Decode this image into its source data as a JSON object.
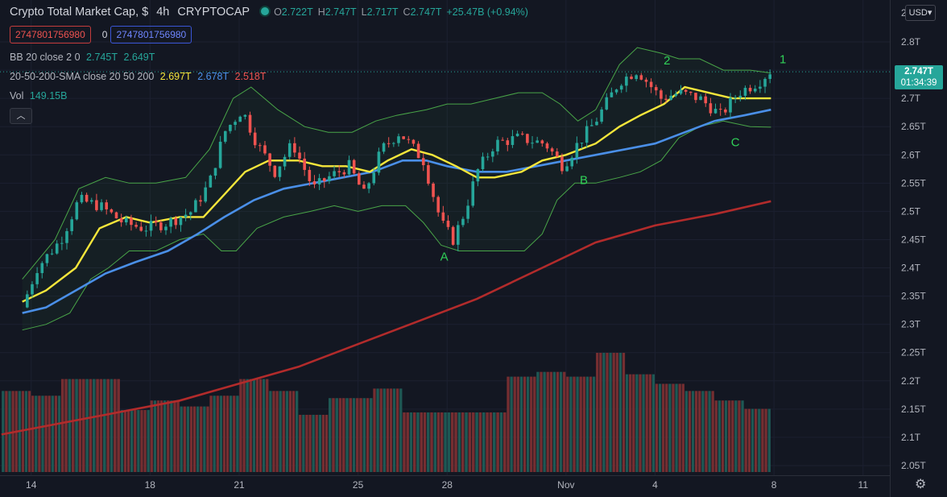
{
  "header": {
    "symbol_title": "Crypto Total Market Cap, $",
    "interval": "4h",
    "exchange": "CRYPTOCAP",
    "ohlc": [
      {
        "key": "O",
        "value": "2.722T"
      },
      {
        "key": "H",
        "value": "2.747T"
      },
      {
        "key": "L",
        "value": "2.717T"
      },
      {
        "key": "C",
        "value": "2.747T"
      }
    ],
    "change": "+25.47B (+0.94%)"
  },
  "alert_row": {
    "left_value": "2747801756980",
    "middle": "0",
    "right_value": "2747801756980"
  },
  "indicators": {
    "bb": {
      "label": "BB 20 close 2 0",
      "upper": "2.745T",
      "lower": "2.649T"
    },
    "sma": {
      "label": "20-50-200-SMA close 20 50 200",
      "v20": "2.697T",
      "v50": "2.678T",
      "v200": "2.518T"
    },
    "vol": {
      "label": "Vol",
      "value": "149.15B"
    }
  },
  "currency_button": "USD",
  "last_price": {
    "value": "2.747T",
    "countdown": "01:34:39"
  },
  "colors": {
    "bg": "#131722",
    "up": "#26a69a",
    "down": "#ef5350",
    "sma20": "#f5e63b",
    "sma50": "#4a8fe7",
    "sma200": "#b22b2b",
    "bb": "#49a548",
    "annotation": "#30d158"
  },
  "chart_data": {
    "type": "candlestick",
    "ylim": [
      2.04,
      2.85
    ],
    "yticks": [
      "2.05T",
      "2.1T",
      "2.15T",
      "2.2T",
      "2.25T",
      "2.3T",
      "2.35T",
      "2.4T",
      "2.45T",
      "2.5T",
      "2.55T",
      "2.6T",
      "2.65T",
      "2.7T",
      "2.75T",
      "2.8T"
    ],
    "y_top_label": "2",
    "x_dates": [
      "Oct 13",
      "Nov 9"
    ],
    "xticks": [
      {
        "label": "14",
        "day": 1.0
      },
      {
        "label": "18",
        "day": 5.0
      },
      {
        "label": "21",
        "day": 8.0
      },
      {
        "label": "25",
        "day": 12.0
      },
      {
        "label": "28",
        "day": 15.0
      },
      {
        "label": "Nov",
        "day": 19.0
      },
      {
        "label": "4",
        "day": 22.0
      },
      {
        "label": "8",
        "day": 26.0
      },
      {
        "label": "11",
        "day": 29.0
      }
    ],
    "close_path": [
      [
        0.7,
        2.33
      ],
      [
        1.2,
        2.4
      ],
      [
        2.0,
        2.45
      ],
      [
        2.6,
        2.52
      ],
      [
        3.3,
        2.51
      ],
      [
        4.1,
        2.48
      ],
      [
        4.8,
        2.47
      ],
      [
        5.6,
        2.48
      ],
      [
        6.4,
        2.5
      ],
      [
        7.0,
        2.55
      ],
      [
        7.5,
        2.64
      ],
      [
        8.1,
        2.68
      ],
      [
        8.6,
        2.62
      ],
      [
        9.2,
        2.57
      ],
      [
        9.8,
        2.62
      ],
      [
        10.5,
        2.54
      ],
      [
        11.0,
        2.56
      ],
      [
        11.7,
        2.58
      ],
      [
        12.2,
        2.53
      ],
      [
        12.8,
        2.61
      ],
      [
        13.4,
        2.64
      ],
      [
        14.2,
        2.59
      ],
      [
        14.8,
        2.48
      ],
      [
        15.2,
        2.45
      ],
      [
        15.6,
        2.5
      ],
      [
        16.0,
        2.57
      ],
      [
        16.6,
        2.62
      ],
      [
        17.4,
        2.63
      ],
      [
        18.3,
        2.62
      ],
      [
        18.9,
        2.58
      ],
      [
        19.4,
        2.62
      ],
      [
        20.0,
        2.66
      ],
      [
        20.8,
        2.73
      ],
      [
        21.4,
        2.75
      ],
      [
        22.2,
        2.7
      ],
      [
        22.8,
        2.71
      ],
      [
        23.5,
        2.7
      ],
      [
        24.2,
        2.67
      ],
      [
        24.8,
        2.71
      ],
      [
        25.5,
        2.73
      ],
      [
        25.9,
        2.75
      ]
    ],
    "sma20": [
      [
        0.7,
        2.34
      ],
      [
        1.5,
        2.36
      ],
      [
        2.5,
        2.4
      ],
      [
        3.3,
        2.47
      ],
      [
        4.2,
        2.49
      ],
      [
        5.0,
        2.48
      ],
      [
        6.0,
        2.49
      ],
      [
        6.8,
        2.49
      ],
      [
        7.5,
        2.53
      ],
      [
        8.2,
        2.57
      ],
      [
        9.0,
        2.59
      ],
      [
        10.0,
        2.59
      ],
      [
        10.8,
        2.58
      ],
      [
        11.6,
        2.58
      ],
      [
        12.4,
        2.57
      ],
      [
        13.0,
        2.59
      ],
      [
        13.8,
        2.61
      ],
      [
        14.5,
        2.6
      ],
      [
        15.3,
        2.58
      ],
      [
        16.0,
        2.56
      ],
      [
        16.6,
        2.56
      ],
      [
        17.5,
        2.57
      ],
      [
        18.2,
        2.59
      ],
      [
        19.0,
        2.6
      ],
      [
        20.0,
        2.62
      ],
      [
        20.8,
        2.65
      ],
      [
        21.5,
        2.67
      ],
      [
        22.3,
        2.69
      ],
      [
        23.0,
        2.72
      ],
      [
        23.8,
        2.71
      ],
      [
        24.6,
        2.7
      ],
      [
        25.3,
        2.7
      ],
      [
        25.9,
        2.7
      ]
    ],
    "sma50": [
      [
        0.7,
        2.32
      ],
      [
        1.5,
        2.33
      ],
      [
        2.5,
        2.36
      ],
      [
        3.5,
        2.39
      ],
      [
        4.5,
        2.41
      ],
      [
        5.6,
        2.43
      ],
      [
        6.6,
        2.46
      ],
      [
        7.5,
        2.49
      ],
      [
        8.5,
        2.52
      ],
      [
        9.5,
        2.54
      ],
      [
        10.5,
        2.55
      ],
      [
        11.5,
        2.56
      ],
      [
        12.5,
        2.57
      ],
      [
        13.5,
        2.59
      ],
      [
        14.3,
        2.59
      ],
      [
        15.0,
        2.58
      ],
      [
        16.0,
        2.57
      ],
      [
        17.0,
        2.57
      ],
      [
        18.0,
        2.58
      ],
      [
        19.0,
        2.59
      ],
      [
        20.0,
        2.6
      ],
      [
        21.0,
        2.61
      ],
      [
        22.0,
        2.62
      ],
      [
        23.0,
        2.64
      ],
      [
        24.0,
        2.66
      ],
      [
        25.0,
        2.67
      ],
      [
        25.9,
        2.68
      ]
    ],
    "sma200": [
      [
        0.0,
        2.105
      ],
      [
        2.0,
        2.125
      ],
      [
        4.0,
        2.145
      ],
      [
        6.0,
        2.165
      ],
      [
        8.0,
        2.195
      ],
      [
        10.0,
        2.225
      ],
      [
        12.0,
        2.265
      ],
      [
        14.0,
        2.305
      ],
      [
        16.0,
        2.345
      ],
      [
        18.0,
        2.395
      ],
      [
        20.0,
        2.445
      ],
      [
        22.0,
        2.475
      ],
      [
        24.0,
        2.495
      ],
      [
        25.9,
        2.518
      ]
    ],
    "bb_upper": [
      [
        0.7,
        2.38
      ],
      [
        1.8,
        2.45
      ],
      [
        2.6,
        2.54
      ],
      [
        3.5,
        2.56
      ],
      [
        4.3,
        2.55
      ],
      [
        5.2,
        2.55
      ],
      [
        6.2,
        2.56
      ],
      [
        7.0,
        2.61
      ],
      [
        7.8,
        2.7
      ],
      [
        8.4,
        2.72
      ],
      [
        9.3,
        2.68
      ],
      [
        10.2,
        2.65
      ],
      [
        11.0,
        2.64
      ],
      [
        11.8,
        2.64
      ],
      [
        12.6,
        2.66
      ],
      [
        13.3,
        2.67
      ],
      [
        14.3,
        2.68
      ],
      [
        15.0,
        2.69
      ],
      [
        15.8,
        2.69
      ],
      [
        16.6,
        2.7
      ],
      [
        17.4,
        2.71
      ],
      [
        18.2,
        2.71
      ],
      [
        18.8,
        2.69
      ],
      [
        19.4,
        2.66
      ],
      [
        20.0,
        2.68
      ],
      [
        20.8,
        2.76
      ],
      [
        21.4,
        2.79
      ],
      [
        22.2,
        2.78
      ],
      [
        22.8,
        2.77
      ],
      [
        23.5,
        2.77
      ],
      [
        24.3,
        2.75
      ],
      [
        25.2,
        2.75
      ],
      [
        25.9,
        2.745
      ]
    ],
    "bb_lower": [
      [
        0.7,
        2.29
      ],
      [
        1.5,
        2.3
      ],
      [
        2.3,
        2.32
      ],
      [
        3.0,
        2.38
      ],
      [
        3.6,
        2.4
      ],
      [
        4.3,
        2.43
      ],
      [
        5.2,
        2.43
      ],
      [
        6.0,
        2.45
      ],
      [
        6.8,
        2.46
      ],
      [
        7.4,
        2.43
      ],
      [
        7.9,
        2.43
      ],
      [
        8.6,
        2.47
      ],
      [
        9.5,
        2.49
      ],
      [
        10.4,
        2.5
      ],
      [
        11.2,
        2.51
      ],
      [
        12.0,
        2.5
      ],
      [
        12.8,
        2.51
      ],
      [
        13.6,
        2.51
      ],
      [
        14.2,
        2.48
      ],
      [
        14.8,
        2.44
      ],
      [
        15.4,
        2.43
      ],
      [
        16.2,
        2.43
      ],
      [
        17.0,
        2.43
      ],
      [
        17.6,
        2.43
      ],
      [
        18.2,
        2.46
      ],
      [
        18.7,
        2.52
      ],
      [
        19.3,
        2.55
      ],
      [
        20.0,
        2.55
      ],
      [
        20.8,
        2.56
      ],
      [
        21.5,
        2.57
      ],
      [
        22.2,
        2.59
      ],
      [
        22.8,
        2.63
      ],
      [
        23.5,
        2.65
      ],
      [
        24.3,
        2.66
      ],
      [
        25.2,
        2.65
      ],
      [
        25.9,
        2.649
      ]
    ],
    "volume_bars": [
      {
        "from": 0.0,
        "to": 1.0,
        "value": 0.68,
        "color": "mixed"
      },
      {
        "from": 1.0,
        "to": 2.0,
        "value": 0.64,
        "color": "mixed"
      },
      {
        "from": 2.0,
        "to": 4.0,
        "value": 0.78,
        "color": "mixed"
      },
      {
        "from": 4.0,
        "to": 5.0,
        "value": 0.52,
        "color": "mixed"
      },
      {
        "from": 5.0,
        "to": 6.0,
        "value": 0.6,
        "color": "mixed"
      },
      {
        "from": 6.0,
        "to": 7.0,
        "value": 0.55,
        "color": "mixed"
      },
      {
        "from": 7.0,
        "to": 8.0,
        "value": 0.64,
        "color": "mixed"
      },
      {
        "from": 8.0,
        "to": 9.0,
        "value": 0.78,
        "color": "mixed"
      },
      {
        "from": 9.0,
        "to": 10.0,
        "value": 0.68,
        "color": "mixed"
      },
      {
        "from": 10.0,
        "to": 11.0,
        "value": 0.48,
        "color": "mixed"
      },
      {
        "from": 11.0,
        "to": 12.5,
        "value": 0.62,
        "color": "mixed"
      },
      {
        "from": 12.5,
        "to": 13.5,
        "value": 0.7,
        "color": "mixed"
      },
      {
        "from": 13.5,
        "to": 15.0,
        "value": 0.5,
        "color": "mixed"
      },
      {
        "from": 15.0,
        "to": 17.0,
        "value": 0.5,
        "color": "mixed"
      },
      {
        "from": 17.0,
        "to": 18.0,
        "value": 0.8,
        "color": "mixed"
      },
      {
        "from": 18.0,
        "to": 19.0,
        "value": 0.84,
        "color": "mixed"
      },
      {
        "from": 19.0,
        "to": 20.0,
        "value": 0.8,
        "color": "mixed"
      },
      {
        "from": 20.0,
        "to": 21.0,
        "value": 1.0,
        "color": "mixed"
      },
      {
        "from": 21.0,
        "to": 22.0,
        "value": 0.82,
        "color": "mixed"
      },
      {
        "from": 22.0,
        "to": 23.0,
        "value": 0.74,
        "color": "mixed"
      },
      {
        "from": 23.0,
        "to": 24.0,
        "value": 0.68,
        "color": "mixed"
      },
      {
        "from": 24.0,
        "to": 25.0,
        "value": 0.6,
        "color": "mixed"
      },
      {
        "from": 25.0,
        "to": 25.9,
        "value": 0.53,
        "color": "mixed"
      }
    ],
    "annotations": [
      {
        "text": "A",
        "day": 14.9,
        "y": 2.413
      },
      {
        "text": "B",
        "day": 19.6,
        "y": 2.548
      },
      {
        "text": "C",
        "day": 24.7,
        "y": 2.615
      },
      {
        "text": "2",
        "day": 22.4,
        "y": 2.76
      },
      {
        "text": "1",
        "day": 26.3,
        "y": 2.762
      }
    ]
  }
}
